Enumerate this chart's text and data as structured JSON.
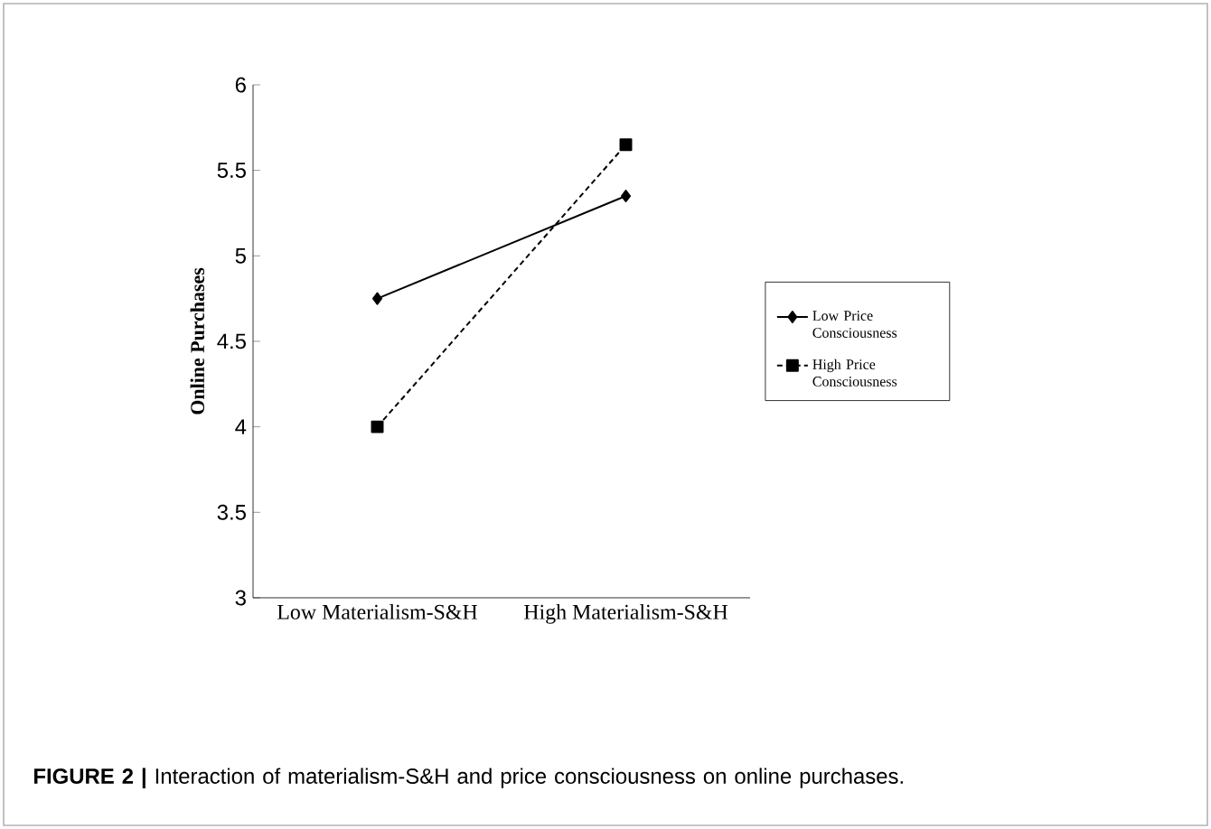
{
  "chart_data": {
    "type": "line",
    "ylabel": "Online Purchases",
    "categories": [
      "Low Materialism-S&H",
      "High Materialism-S&H"
    ],
    "series": [
      {
        "name": "Low Price Consciousness",
        "color": "#000000",
        "values": [
          4.75,
          5.35
        ],
        "marker": "diamond",
        "line_style": "solid"
      },
      {
        "name": "High Price Consciousness",
        "color": "#000000",
        "values": [
          4.0,
          5.65
        ],
        "marker": "square",
        "line_style": "dashed"
      }
    ],
    "ylim": [
      3,
      6
    ],
    "yticks": [
      3,
      3.5,
      4,
      4.5,
      5,
      5.5,
      6
    ],
    "grid": false,
    "legend": "right",
    "annotations": [
      "**FIGURE 2 |** Interaction of materialism-S&H and price consciousness on online purchases."
    ]
  }
}
